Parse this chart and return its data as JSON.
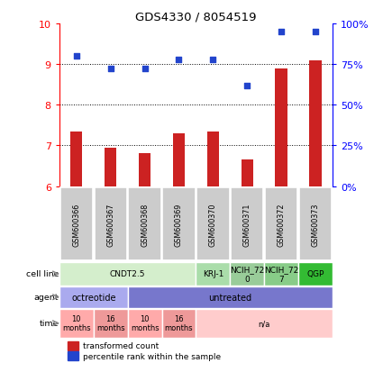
{
  "title": "GDS4330 / 8054519",
  "samples": [
    "GSM600366",
    "GSM600367",
    "GSM600368",
    "GSM600369",
    "GSM600370",
    "GSM600371",
    "GSM600372",
    "GSM600373"
  ],
  "bar_values": [
    7.35,
    6.95,
    6.8,
    7.3,
    7.35,
    6.65,
    8.9,
    9.1
  ],
  "scatter_pct": [
    80,
    72,
    72,
    78,
    78,
    62,
    95,
    95
  ],
  "ylim": [
    6,
    10
  ],
  "yticks": [
    6,
    7,
    8,
    9,
    10
  ],
  "y2ticks": [
    0,
    25,
    50,
    75,
    100
  ],
  "bar_color": "#cc2222",
  "scatter_color": "#2244cc",
  "cell_line_groups": [
    {
      "label": "CNDT2.5",
      "start": 0,
      "end": 4,
      "color": "#d4eecc"
    },
    {
      "label": "KRJ-1",
      "start": 4,
      "end": 5,
      "color": "#aaddaa"
    },
    {
      "label": "NCIH_72\n0",
      "start": 5,
      "end": 6,
      "color": "#99cc99"
    },
    {
      "label": "NCIH_72\n7",
      "start": 6,
      "end": 7,
      "color": "#88cc88"
    },
    {
      "label": "QGP",
      "start": 7,
      "end": 8,
      "color": "#33bb33"
    }
  ],
  "agent_groups": [
    {
      "label": "octreotide",
      "start": 0,
      "end": 2,
      "color": "#aaaaee"
    },
    {
      "label": "untreated",
      "start": 2,
      "end": 8,
      "color": "#7777cc"
    }
  ],
  "time_groups": [
    {
      "label": "10\nmonths",
      "start": 0,
      "end": 1,
      "color": "#ffaaaa"
    },
    {
      "label": "16\nmonths",
      "start": 1,
      "end": 2,
      "color": "#ee9999"
    },
    {
      "label": "10\nmonths",
      "start": 2,
      "end": 3,
      "color": "#ffaaaa"
    },
    {
      "label": "16\nmonths",
      "start": 3,
      "end": 4,
      "color": "#ee9999"
    },
    {
      "label": "n/a",
      "start": 4,
      "end": 8,
      "color": "#ffcccc"
    }
  ],
  "sample_box_color": "#cccccc",
  "legend_items": [
    {
      "label": "transformed count",
      "color": "#cc2222"
    },
    {
      "label": "percentile rank within the sample",
      "color": "#2244cc"
    }
  ],
  "bar_base": 6.0,
  "row_labels": [
    "cell line",
    "agent",
    "time"
  ],
  "y2ticklabels": [
    "0%",
    "25%",
    "50%",
    "75%",
    "100%"
  ]
}
